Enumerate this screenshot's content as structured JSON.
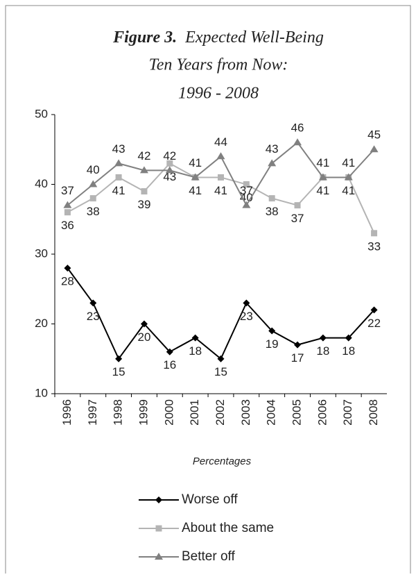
{
  "chart_data": {
    "type": "line",
    "figure_label": "Figure 3.",
    "title": [
      "Expected Well-Being",
      "Ten Years from Now:",
      "1996 - 2008"
    ],
    "x_label": "Percentages",
    "categories": [
      "1996",
      "1997",
      "1998",
      "1999",
      "2000",
      "2001",
      "2002",
      "2003",
      "2004",
      "2005",
      "2006",
      "2007",
      "2008"
    ],
    "series": [
      {
        "name": "Worse off",
        "color": "#000000",
        "marker": "diamond",
        "values": [
          28,
          23,
          15,
          20,
          16,
          18,
          15,
          23,
          19,
          17,
          18,
          18,
          22
        ]
      },
      {
        "name": "About the same",
        "color": "#b4b4b4",
        "marker": "square",
        "values": [
          36,
          38,
          41,
          39,
          43,
          41,
          41,
          40,
          38,
          37,
          41,
          41,
          33
        ]
      },
      {
        "name": "Better off",
        "color": "#808080",
        "marker": "triangle",
        "values": [
          37,
          40,
          43,
          42,
          42,
          41,
          44,
          37,
          43,
          46,
          41,
          41,
          45
        ]
      }
    ],
    "ylim": [
      10,
      50
    ],
    "yticks": [
      10,
      20,
      30,
      40,
      50
    ],
    "grid": false
  }
}
